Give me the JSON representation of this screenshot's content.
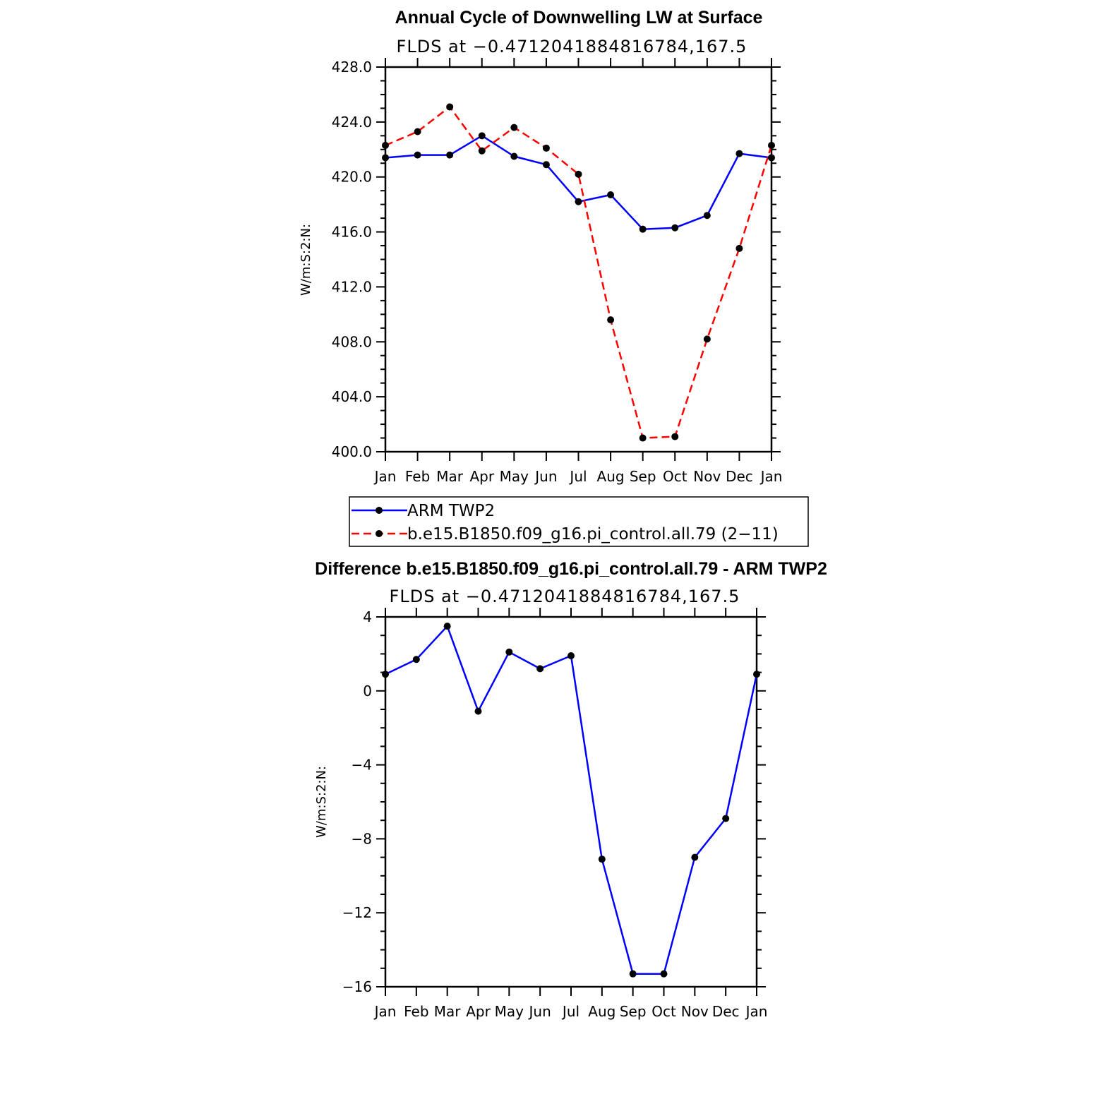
{
  "chart_data": [
    {
      "type": "line",
      "title": "Annual Cycle of Downwelling LW at Surface",
      "subtitle": "FLDS at −0.4712041884816784,167.5",
      "xlabel": "",
      "ylabel": "W/m:S:2:N:",
      "categories": [
        "Jan",
        "Feb",
        "Mar",
        "Apr",
        "May",
        "Jun",
        "Jul",
        "Aug",
        "Sep",
        "Oct",
        "Nov",
        "Dec",
        "Jan"
      ],
      "y_ticks": [
        "400.0",
        "404.0",
        "408.0",
        "412.0",
        "416.0",
        "420.0",
        "424.0",
        "428.0"
      ],
      "ylim": [
        400,
        428
      ],
      "grid": false,
      "series": [
        {
          "name": "ARM  TWP2",
          "color": "#0000ff",
          "dash": "solid",
          "values": [
            421.4,
            421.6,
            421.6,
            423.0,
            421.5,
            420.9,
            418.2,
            418.7,
            416.2,
            416.3,
            417.2,
            421.7,
            421.4
          ]
        },
        {
          "name": "b.e15.B1850.f09_g16.pi_control.all.79  (2−11)",
          "color": "#ff0000",
          "dash": "dashed",
          "values": [
            422.3,
            423.3,
            425.1,
            421.9,
            423.6,
            422.1,
            420.2,
            409.6,
            401.0,
            401.1,
            408.2,
            414.8,
            422.3
          ]
        }
      ],
      "legend": "below-plot"
    },
    {
      "type": "line",
      "title": "Difference b.e15.B1850.f09_g16.pi_control.all.79 - ARM TWP2",
      "subtitle": "FLDS at −0.4712041884816784,167.5",
      "xlabel": "",
      "ylabel": "W/m:S:2:N:",
      "categories": [
        "Jan",
        "Feb",
        "Mar",
        "Apr",
        "May",
        "Jun",
        "Jul",
        "Aug",
        "Sep",
        "Oct",
        "Nov",
        "Dec",
        "Jan"
      ],
      "y_ticks": [
        "−16",
        "−12",
        "−8",
        "−4",
        "0",
        "4"
      ],
      "ylim": [
        -16,
        4
      ],
      "grid": false,
      "series": [
        {
          "color": "#0000ff",
          "dash": "solid",
          "values": [
            0.9,
            1.7,
            3.5,
            -1.1,
            2.1,
            1.2,
            1.9,
            -9.1,
            -15.3,
            -15.3,
            -9.0,
            -6.9,
            0.9
          ]
        }
      ]
    }
  ]
}
